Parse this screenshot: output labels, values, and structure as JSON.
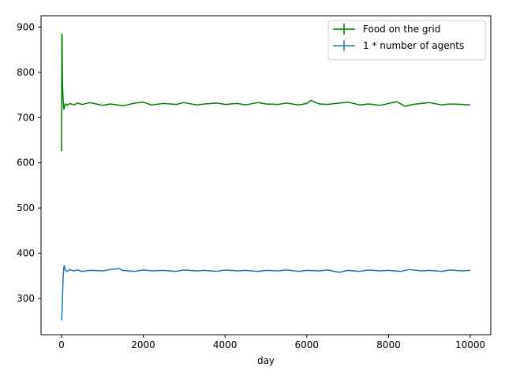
{
  "chart_data": {
    "type": "line",
    "title": "",
    "xlabel": "day",
    "ylabel": "",
    "xlim": [
      -500,
      10500
    ],
    "ylim": [
      220,
      925
    ],
    "xticks": [
      0,
      2000,
      4000,
      6000,
      8000,
      10000
    ],
    "xtick_labels": [
      "0",
      "2000",
      "4000",
      "6000",
      "8000",
      "10000"
    ],
    "yticks": [
      300,
      400,
      500,
      600,
      700,
      800,
      900
    ],
    "ytick_labels": [
      "300",
      "400",
      "500",
      "600",
      "700",
      "800",
      "900"
    ],
    "grid": false,
    "legend": {
      "position": "top-right"
    },
    "series": [
      {
        "name": "Food on the grid",
        "color": "#008000",
        "x": [
          0,
          5,
          10,
          15,
          20,
          25,
          30,
          40,
          50,
          60,
          70,
          80,
          100,
          150,
          200,
          300,
          400,
          500,
          700,
          1000,
          1200,
          1500,
          1800,
          2000,
          2200,
          2500,
          2800,
          3000,
          3300,
          3500,
          3800,
          4000,
          4300,
          4500,
          4800,
          5000,
          5300,
          5500,
          5800,
          6000,
          6100,
          6300,
          6500,
          6800,
          7000,
          7300,
          7500,
          7800,
          8000,
          8200,
          8400,
          8600,
          8800,
          9000,
          9300,
          9500,
          9800,
          10000
        ],
        "y": [
          625,
          700,
          885,
          880,
          820,
          780,
          760,
          740,
          725,
          718,
          722,
          728,
          730,
          727,
          731,
          728,
          732,
          729,
          733,
          727,
          730,
          726,
          732,
          734,
          728,
          731,
          729,
          733,
          728,
          730,
          732,
          729,
          731,
          728,
          733,
          730,
          729,
          732,
          728,
          731,
          738,
          730,
          729,
          732,
          734,
          728,
          730,
          727,
          731,
          735,
          725,
          729,
          731,
          733,
          728,
          730,
          729,
          728
        ]
      },
      {
        "name": "1 * number of agents",
        "color": "#1f77b4",
        "x": [
          0,
          5,
          10,
          20,
          30,
          40,
          50,
          60,
          70,
          80,
          100,
          150,
          200,
          300,
          400,
          500,
          700,
          1000,
          1200,
          1400,
          1500,
          1800,
          2000,
          2200,
          2500,
          2800,
          3000,
          3300,
          3500,
          3800,
          4000,
          4300,
          4500,
          4800,
          5000,
          5300,
          5500,
          5800,
          6000,
          6300,
          6500,
          6800,
          7000,
          7300,
          7500,
          7800,
          8000,
          8300,
          8500,
          8800,
          9000,
          9300,
          9500,
          9800,
          10000
        ],
        "y": [
          252,
          255,
          260,
          290,
          320,
          345,
          360,
          370,
          372,
          365,
          362,
          360,
          364,
          361,
          363,
          360,
          362,
          361,
          364,
          366,
          362,
          360,
          363,
          361,
          362,
          360,
          363,
          361,
          362,
          360,
          363,
          361,
          362,
          360,
          362,
          361,
          363,
          360,
          362,
          361,
          363,
          358,
          362,
          360,
          363,
          361,
          362,
          360,
          364,
          361,
          362,
          360,
          363,
          361,
          362
        ]
      }
    ]
  }
}
